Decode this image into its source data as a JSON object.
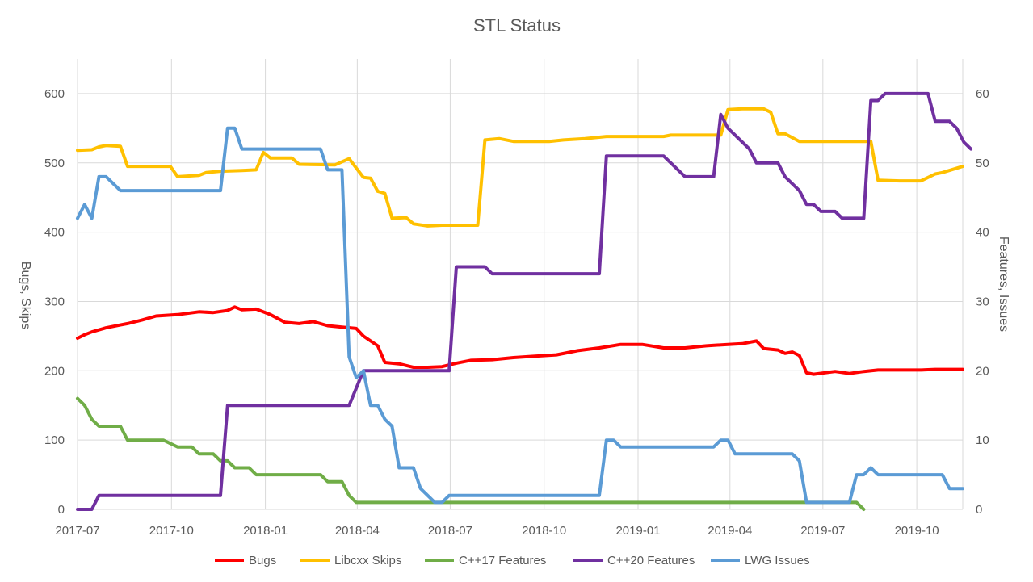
{
  "chart_data": {
    "type": "line",
    "title": "STL Status",
    "ylabel": "Bugs, Skips",
    "y2label": "Features, Issues",
    "ylim": [
      0,
      650
    ],
    "y2lim": [
      0,
      65
    ],
    "yticks": [
      0,
      100,
      200,
      300,
      400,
      500,
      600
    ],
    "y2ticks": [
      0,
      10,
      20,
      30,
      40,
      50,
      60
    ],
    "xlim": [
      "2017-07-01",
      "2019-11-15"
    ],
    "xticks": [
      {
        "date": "2017-07-01",
        "label": "2017-07"
      },
      {
        "date": "2017-10-01",
        "label": "2017-10"
      },
      {
        "date": "2018-01-01",
        "label": "2018-01"
      },
      {
        "date": "2018-04-01",
        "label": "2018-04"
      },
      {
        "date": "2018-07-01",
        "label": "2018-07"
      },
      {
        "date": "2018-10-01",
        "label": "2018-10"
      },
      {
        "date": "2019-01-01",
        "label": "2019-01"
      },
      {
        "date": "2019-04-01",
        "label": "2019-04"
      },
      {
        "date": "2019-07-01",
        "label": "2019-07"
      },
      {
        "date": "2019-10-01",
        "label": "2019-10"
      }
    ],
    "grid": true,
    "legend_position": "bottom",
    "series": [
      {
        "name": "Bugs",
        "axis": "left",
        "color": "#ff0000",
        "points": [
          [
            "2017-07-01",
            247
          ],
          [
            "2017-07-08",
            252
          ],
          [
            "2017-07-15",
            256
          ],
          [
            "2017-07-29",
            262
          ],
          [
            "2017-08-12",
            266
          ],
          [
            "2017-08-19",
            268
          ],
          [
            "2017-09-02",
            273
          ],
          [
            "2017-09-16",
            279
          ],
          [
            "2017-10-07",
            281
          ],
          [
            "2017-10-28",
            285
          ],
          [
            "2017-11-11",
            284
          ],
          [
            "2017-11-25",
            287
          ],
          [
            "2017-12-02",
            292
          ],
          [
            "2017-12-09",
            288
          ],
          [
            "2017-12-23",
            289
          ],
          [
            "2018-01-06",
            281
          ],
          [
            "2018-01-20",
            270
          ],
          [
            "2018-02-03",
            268
          ],
          [
            "2018-02-17",
            271
          ],
          [
            "2018-03-03",
            265
          ],
          [
            "2018-03-17",
            263
          ],
          [
            "2018-03-31",
            261
          ],
          [
            "2018-04-07",
            250
          ],
          [
            "2018-04-21",
            236
          ],
          [
            "2018-04-28",
            212
          ],
          [
            "2018-05-12",
            210
          ],
          [
            "2018-05-26",
            205
          ],
          [
            "2018-06-09",
            205
          ],
          [
            "2018-06-23",
            206
          ],
          [
            "2018-07-07",
            211
          ],
          [
            "2018-07-21",
            215
          ],
          [
            "2018-08-11",
            216
          ],
          [
            "2018-09-01",
            219
          ],
          [
            "2018-09-22",
            221
          ],
          [
            "2018-10-13",
            223
          ],
          [
            "2018-11-03",
            229
          ],
          [
            "2018-11-24",
            233
          ],
          [
            "2018-12-15",
            238
          ],
          [
            "2019-01-05",
            238
          ],
          [
            "2019-01-26",
            233
          ],
          [
            "2019-02-16",
            233
          ],
          [
            "2019-03-09",
            236
          ],
          [
            "2019-03-30",
            238
          ],
          [
            "2019-04-13",
            239
          ],
          [
            "2019-04-27",
            243
          ],
          [
            "2019-05-04",
            232
          ],
          [
            "2019-05-18",
            230
          ],
          [
            "2019-05-25",
            225
          ],
          [
            "2019-06-01",
            227
          ],
          [
            "2019-06-08",
            222
          ],
          [
            "2019-06-15",
            197
          ],
          [
            "2019-06-22",
            195
          ],
          [
            "2019-07-13",
            199
          ],
          [
            "2019-07-27",
            196
          ],
          [
            "2019-08-10",
            199
          ],
          [
            "2019-08-24",
            201
          ],
          [
            "2019-09-14",
            201
          ],
          [
            "2019-10-05",
            201
          ],
          [
            "2019-10-19",
            202
          ],
          [
            "2019-11-15",
            202
          ]
        ]
      },
      {
        "name": "Libcxx Skips",
        "axis": "left",
        "color": "#ffc000",
        "points": [
          [
            "2017-07-01",
            518
          ],
          [
            "2017-07-15",
            519
          ],
          [
            "2017-07-22",
            523
          ],
          [
            "2017-07-29",
            525
          ],
          [
            "2017-08-12",
            524
          ],
          [
            "2017-08-19",
            495
          ],
          [
            "2017-09-30",
            495
          ],
          [
            "2017-10-07",
            480
          ],
          [
            "2017-10-28",
            482
          ],
          [
            "2017-11-04",
            486
          ],
          [
            "2017-11-18",
            488
          ],
          [
            "2017-12-09",
            489
          ],
          [
            "2017-12-23",
            490
          ],
          [
            "2017-12-30",
            515
          ],
          [
            "2018-01-06",
            507
          ],
          [
            "2018-01-27",
            507
          ],
          [
            "2018-02-03",
            498
          ],
          [
            "2018-03-10",
            497
          ],
          [
            "2018-03-24",
            506
          ],
          [
            "2018-04-07",
            479
          ],
          [
            "2018-04-14",
            478
          ],
          [
            "2018-04-21",
            459
          ],
          [
            "2018-04-28",
            456
          ],
          [
            "2018-05-05",
            420
          ],
          [
            "2018-05-19",
            421
          ],
          [
            "2018-05-26",
            412
          ],
          [
            "2018-06-09",
            409
          ],
          [
            "2018-06-23",
            410
          ],
          [
            "2018-07-28",
            410
          ],
          [
            "2018-08-04",
            533
          ],
          [
            "2018-08-18",
            535
          ],
          [
            "2018-09-01",
            531
          ],
          [
            "2018-10-06",
            531
          ],
          [
            "2018-10-20",
            533
          ],
          [
            "2018-11-10",
            535
          ],
          [
            "2018-12-01",
            538
          ],
          [
            "2018-12-29",
            538
          ],
          [
            "2019-01-26",
            538
          ],
          [
            "2019-02-02",
            540
          ],
          [
            "2019-03-02",
            540
          ],
          [
            "2019-03-23",
            540
          ],
          [
            "2019-03-30",
            577
          ],
          [
            "2019-04-13",
            578
          ],
          [
            "2019-05-04",
            578
          ],
          [
            "2019-05-11",
            573
          ],
          [
            "2019-05-18",
            542
          ],
          [
            "2019-05-25",
            542
          ],
          [
            "2019-06-08",
            531
          ],
          [
            "2019-07-06",
            531
          ],
          [
            "2019-08-17",
            531
          ],
          [
            "2019-08-24",
            475
          ],
          [
            "2019-09-14",
            474
          ],
          [
            "2019-10-05",
            474
          ],
          [
            "2019-10-19",
            484
          ],
          [
            "2019-10-26",
            486
          ],
          [
            "2019-11-15",
            495
          ]
        ]
      },
      {
        "name": "C++17 Features",
        "axis": "right",
        "color": "#70ad47",
        "points": [
          [
            "2017-07-01",
            16
          ],
          [
            "2017-07-08",
            15
          ],
          [
            "2017-07-15",
            13
          ],
          [
            "2017-07-22",
            12
          ],
          [
            "2017-08-12",
            12
          ],
          [
            "2017-08-19",
            10
          ],
          [
            "2017-09-23",
            10
          ],
          [
            "2017-10-07",
            9
          ],
          [
            "2017-10-21",
            9
          ],
          [
            "2017-10-28",
            8
          ],
          [
            "2017-11-11",
            8
          ],
          [
            "2017-11-18",
            7
          ],
          [
            "2017-11-25",
            7
          ],
          [
            "2017-12-02",
            6
          ],
          [
            "2017-12-16",
            6
          ],
          [
            "2017-12-23",
            5
          ],
          [
            "2018-01-27",
            5
          ],
          [
            "2018-02-24",
            5
          ],
          [
            "2018-03-03",
            4
          ],
          [
            "2018-03-17",
            4
          ],
          [
            "2018-03-24",
            2
          ],
          [
            "2018-03-31",
            1
          ],
          [
            "2019-07-27",
            1
          ],
          [
            "2019-08-03",
            1
          ],
          [
            "2019-08-10",
            0
          ]
        ]
      },
      {
        "name": "C++20 Features",
        "axis": "right",
        "color": "#7030a0",
        "points": [
          [
            "2017-07-01",
            0
          ],
          [
            "2017-07-15",
            0
          ],
          [
            "2017-07-22",
            2
          ],
          [
            "2017-11-18",
            2
          ],
          [
            "2017-11-25",
            15
          ],
          [
            "2018-03-24",
            15
          ],
          [
            "2018-04-07",
            20
          ],
          [
            "2018-06-30",
            20
          ],
          [
            "2018-07-07",
            35
          ],
          [
            "2018-08-04",
            35
          ],
          [
            "2018-08-11",
            34
          ],
          [
            "2018-11-24",
            34
          ],
          [
            "2018-12-01",
            51
          ],
          [
            "2019-01-26",
            51
          ],
          [
            "2019-02-16",
            48
          ],
          [
            "2019-03-16",
            48
          ],
          [
            "2019-03-23",
            57
          ],
          [
            "2019-03-30",
            55
          ],
          [
            "2019-04-20",
            52
          ],
          [
            "2019-04-27",
            50
          ],
          [
            "2019-05-18",
            50
          ],
          [
            "2019-05-25",
            48
          ],
          [
            "2019-06-08",
            46
          ],
          [
            "2019-06-15",
            44
          ],
          [
            "2019-06-22",
            44
          ],
          [
            "2019-06-29",
            43
          ],
          [
            "2019-07-13",
            43
          ],
          [
            "2019-07-20",
            42
          ],
          [
            "2019-08-10",
            42
          ],
          [
            "2019-08-17",
            59
          ],
          [
            "2019-08-24",
            59
          ],
          [
            "2019-08-31",
            60
          ],
          [
            "2019-09-28",
            60
          ],
          [
            "2019-10-12",
            60
          ],
          [
            "2019-10-19",
            56
          ],
          [
            "2019-11-02",
            56
          ],
          [
            "2019-11-09",
            55
          ],
          [
            "2019-11-16",
            53
          ],
          [
            "2019-11-23",
            52
          ]
        ]
      },
      {
        "name": "LWG Issues",
        "axis": "right",
        "color": "#5b9bd5",
        "points": [
          [
            "2017-07-01",
            42
          ],
          [
            "2017-07-08",
            44
          ],
          [
            "2017-07-15",
            42
          ],
          [
            "2017-07-22",
            48
          ],
          [
            "2017-07-29",
            48
          ],
          [
            "2017-08-12",
            46
          ],
          [
            "2017-11-18",
            46
          ],
          [
            "2017-11-25",
            55
          ],
          [
            "2017-12-02",
            55
          ],
          [
            "2017-12-09",
            52
          ],
          [
            "2018-02-24",
            52
          ],
          [
            "2018-03-03",
            49
          ],
          [
            "2018-03-17",
            49
          ],
          [
            "2018-03-24",
            22
          ],
          [
            "2018-03-31",
            19
          ],
          [
            "2018-04-07",
            20
          ],
          [
            "2018-04-14",
            15
          ],
          [
            "2018-04-21",
            15
          ],
          [
            "2018-04-28",
            13
          ],
          [
            "2018-05-05",
            12
          ],
          [
            "2018-05-12",
            6
          ],
          [
            "2018-05-26",
            6
          ],
          [
            "2018-06-02",
            3
          ],
          [
            "2018-06-16",
            1
          ],
          [
            "2018-06-23",
            1
          ],
          [
            "2018-06-30",
            2
          ],
          [
            "2018-11-24",
            2
          ],
          [
            "2018-12-01",
            10
          ],
          [
            "2018-12-08",
            10
          ],
          [
            "2018-12-15",
            9
          ],
          [
            "2019-03-16",
            9
          ],
          [
            "2019-03-23",
            10
          ],
          [
            "2019-03-30",
            10
          ],
          [
            "2019-04-06",
            8
          ],
          [
            "2019-06-01",
            8
          ],
          [
            "2019-06-08",
            7
          ],
          [
            "2019-06-15",
            1
          ],
          [
            "2019-07-27",
            1
          ],
          [
            "2019-08-03",
            5
          ],
          [
            "2019-08-10",
            5
          ],
          [
            "2019-08-17",
            6
          ],
          [
            "2019-08-24",
            5
          ],
          [
            "2019-10-26",
            5
          ],
          [
            "2019-11-02",
            3
          ],
          [
            "2019-11-15",
            3
          ]
        ]
      }
    ]
  }
}
